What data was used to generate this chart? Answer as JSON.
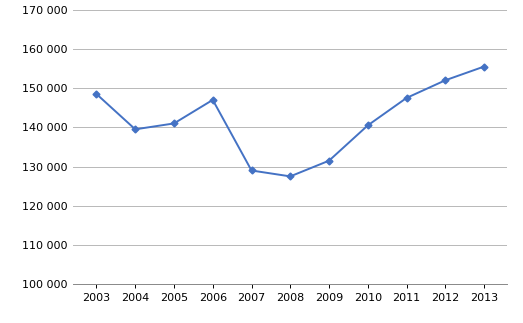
{
  "years": [
    2003,
    2004,
    2005,
    2006,
    2007,
    2008,
    2009,
    2010,
    2011,
    2012,
    2013
  ],
  "values": [
    148500,
    139500,
    141000,
    147000,
    129000,
    127500,
    131500,
    140500,
    147500,
    152000,
    155500
  ],
  "line_color": "#4472c4",
  "marker": "D",
  "marker_size": 3.5,
  "ylim": [
    100000,
    170000
  ],
  "yticks": [
    100000,
    110000,
    120000,
    130000,
    140000,
    150000,
    160000,
    170000
  ],
  "xticks": [
    2003,
    2004,
    2005,
    2006,
    2007,
    2008,
    2009,
    2010,
    2011,
    2012,
    2013
  ],
  "background_color": "#ffffff",
  "grid_color": "#b8b8b8",
  "line_width": 1.4,
  "tick_label_fontsize": 8,
  "xlim_left": 2002.4,
  "xlim_right": 2013.6
}
